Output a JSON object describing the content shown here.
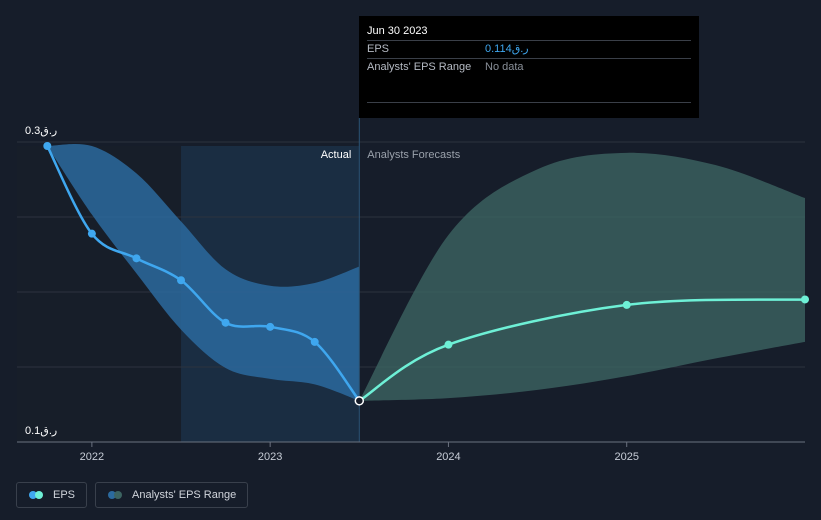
{
  "tooltip": {
    "date": "Jun 30 2023",
    "rows": [
      {
        "label": "EPS",
        "value": "0.114ر.ق"
      },
      {
        "label": "Analysts' EPS Range",
        "value": "No data"
      }
    ]
  },
  "legend": [
    {
      "label": "EPS",
      "colors": [
        "#3fa7ef",
        "#6ef0d6"
      ]
    },
    {
      "label": "Analysts' EPS Range",
      "colors": [
        "#2b6a9e",
        "#3c6461"
      ]
    }
  ],
  "chart_data": {
    "type": "line",
    "title": "",
    "xlabel": "",
    "ylabel": "",
    "ylim": [
      0.1,
      0.3
    ],
    "y_tick_labels": [
      {
        "value": 0.3,
        "label": "0.3ر.ق"
      },
      {
        "value": 0.1,
        "label": "0.1ر.ق"
      }
    ],
    "x_ticks": [
      {
        "year": 2022,
        "label": "2022"
      },
      {
        "year": 2023,
        "label": "2023"
      },
      {
        "year": 2024,
        "label": "2024"
      },
      {
        "year": 2025,
        "label": "2025"
      }
    ],
    "grid": true,
    "x_range": [
      2021.58,
      2026.0
    ],
    "actual_end": 2023.5,
    "shaded_band_start": 2022.5,
    "section_labels": {
      "actual": "Actual",
      "forecast": "Analysts Forecasts"
    },
    "series": [
      {
        "name": "EPS",
        "kind": "actual",
        "color": "#3fa7ef",
        "points": [
          {
            "x": 2021.75,
            "y": 0.3
          },
          {
            "x": 2022.0,
            "y": 0.236
          },
          {
            "x": 2022.25,
            "y": 0.218
          },
          {
            "x": 2022.5,
            "y": 0.202
          },
          {
            "x": 2022.75,
            "y": 0.171
          },
          {
            "x": 2023.0,
            "y": 0.168
          },
          {
            "x": 2023.25,
            "y": 0.157
          },
          {
            "x": 2023.5,
            "y": 0.114
          }
        ]
      },
      {
        "name": "EPS",
        "kind": "forecast",
        "color": "#6ef0d6",
        "points": [
          {
            "x": 2023.5,
            "y": 0.114
          },
          {
            "x": 2024.0,
            "y": 0.155
          },
          {
            "x": 2025.0,
            "y": 0.184
          },
          {
            "x": 2026.0,
            "y": 0.188
          }
        ]
      }
    ],
    "ranges": [
      {
        "name": "Analysts' EPS Range",
        "kind": "actual",
        "color": "#2b6a9e",
        "upper": [
          {
            "x": 2021.75,
            "y": 0.3
          },
          {
            "x": 2022.0,
            "y": 0.3
          },
          {
            "x": 2022.25,
            "y": 0.28
          },
          {
            "x": 2022.5,
            "y": 0.245
          },
          {
            "x": 2022.75,
            "y": 0.21
          },
          {
            "x": 2023.0,
            "y": 0.198
          },
          {
            "x": 2023.25,
            "y": 0.2
          },
          {
            "x": 2023.5,
            "y": 0.212
          }
        ],
        "lower": [
          {
            "x": 2023.5,
            "y": 0.114
          },
          {
            "x": 2023.25,
            "y": 0.126
          },
          {
            "x": 2023.0,
            "y": 0.13
          },
          {
            "x": 2022.75,
            "y": 0.138
          },
          {
            "x": 2022.5,
            "y": 0.166
          },
          {
            "x": 2022.25,
            "y": 0.207
          },
          {
            "x": 2022.0,
            "y": 0.25
          },
          {
            "x": 2021.75,
            "y": 0.3
          }
        ]
      },
      {
        "name": "Analysts' EPS Range",
        "kind": "forecast",
        "color": "#3c6461",
        "upper": [
          {
            "x": 2023.5,
            "y": 0.114
          },
          {
            "x": 2024.0,
            "y": 0.235
          },
          {
            "x": 2024.5,
            "y": 0.283
          },
          {
            "x": 2025.0,
            "y": 0.295
          },
          {
            "x": 2025.5,
            "y": 0.286
          },
          {
            "x": 2026.0,
            "y": 0.262
          }
        ],
        "lower": [
          {
            "x": 2026.0,
            "y": 0.157
          },
          {
            "x": 2025.5,
            "y": 0.145
          },
          {
            "x": 2025.0,
            "y": 0.132
          },
          {
            "x": 2024.5,
            "y": 0.122
          },
          {
            "x": 2024.0,
            "y": 0.116
          },
          {
            "x": 2023.5,
            "y": 0.114
          }
        ]
      }
    ]
  }
}
